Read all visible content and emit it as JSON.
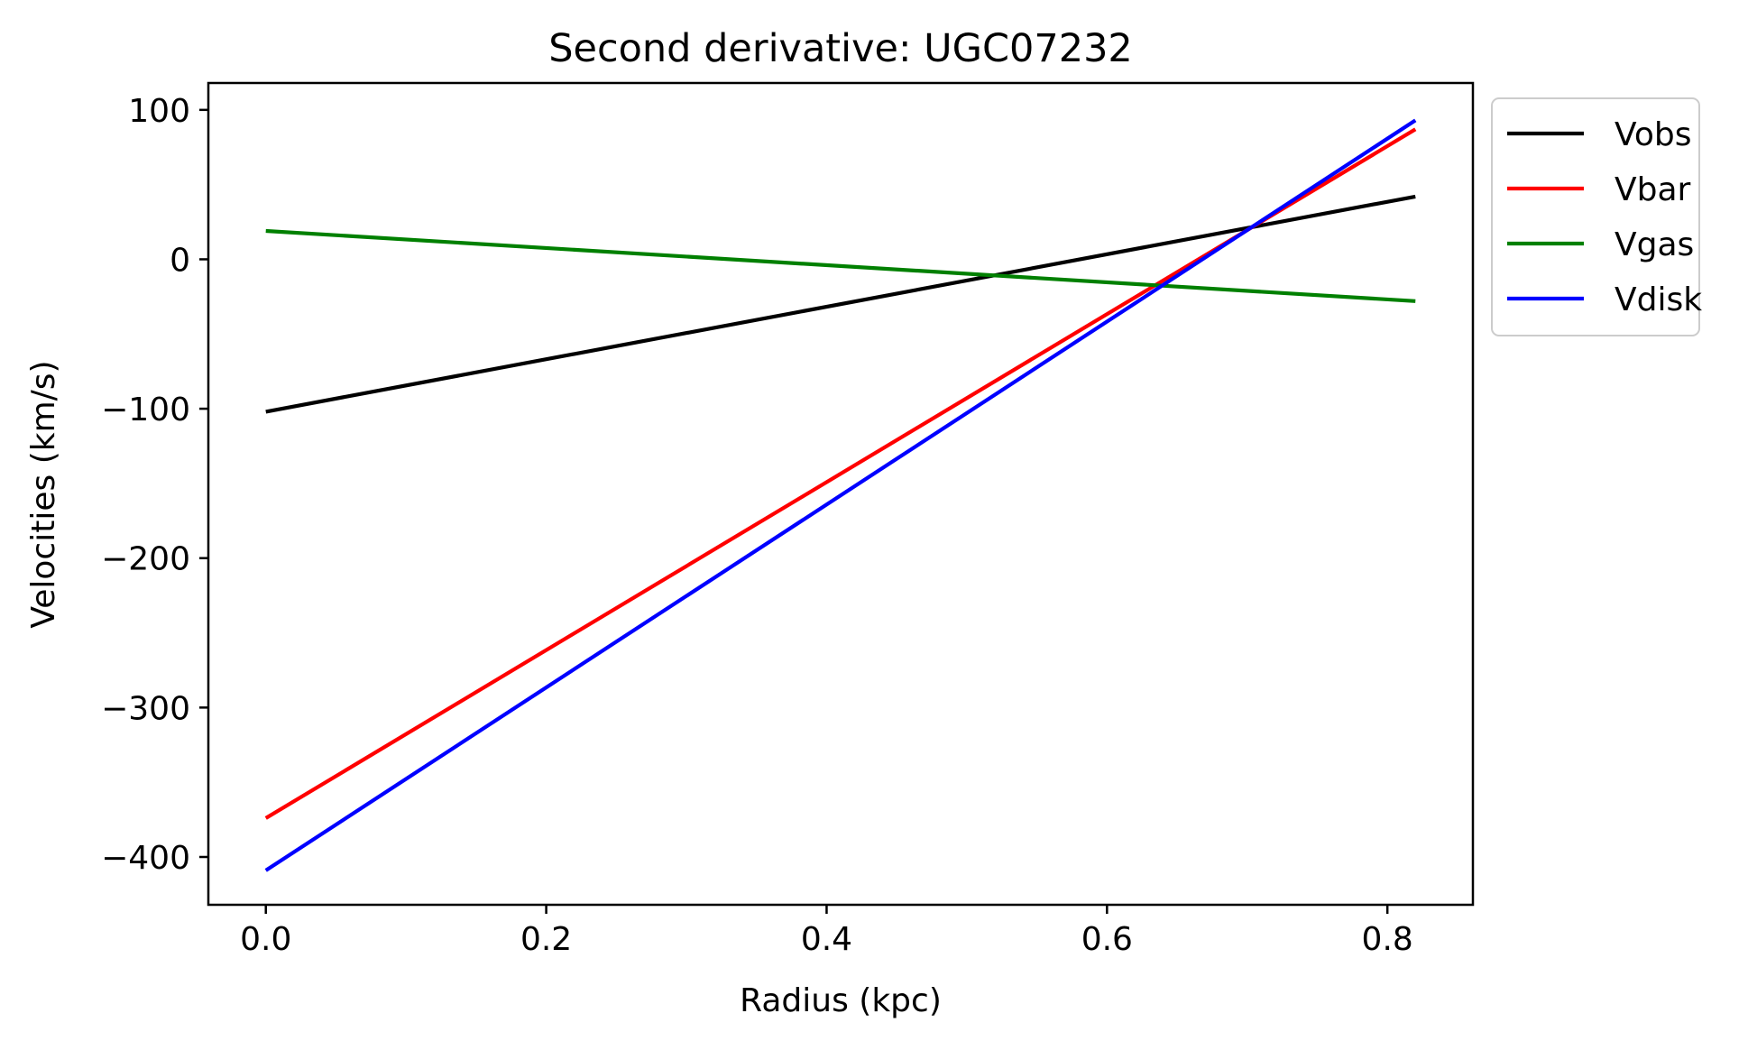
{
  "chart_data": {
    "type": "line",
    "title": "Second derivative: UGC07232",
    "xlabel": "Radius (kpc)",
    "ylabel": "Velocities (km/s)",
    "xlim": [
      -0.041,
      0.861
    ],
    "ylim": [
      -432,
      118
    ],
    "xticks": [
      0.0,
      0.2,
      0.4,
      0.6,
      0.8
    ],
    "xtick_labels": [
      "0.0",
      "0.2",
      "0.4",
      "0.6",
      "0.8"
    ],
    "yticks": [
      100,
      0,
      -100,
      -200,
      -300,
      -400
    ],
    "ytick_labels": [
      "100",
      "0",
      "−100",
      "−200",
      "−300",
      "−400"
    ],
    "grid": false,
    "legend_position": "outside top-right",
    "series": [
      {
        "name": "Vobs",
        "color": "#000000",
        "x": [
          0.0,
          0.82
        ],
        "y": [
          -102,
          42
        ]
      },
      {
        "name": "Vbar",
        "color": "#ff0000",
        "x": [
          0.0,
          0.82
        ],
        "y": [
          -374,
          87
        ]
      },
      {
        "name": "Vgas",
        "color": "#008000",
        "x": [
          0.0,
          0.82
        ],
        "y": [
          19,
          -28
        ]
      },
      {
        "name": "Vdisk",
        "color": "#0000ff",
        "x": [
          0.0,
          0.82
        ],
        "y": [
          -409,
          93
        ]
      }
    ]
  }
}
